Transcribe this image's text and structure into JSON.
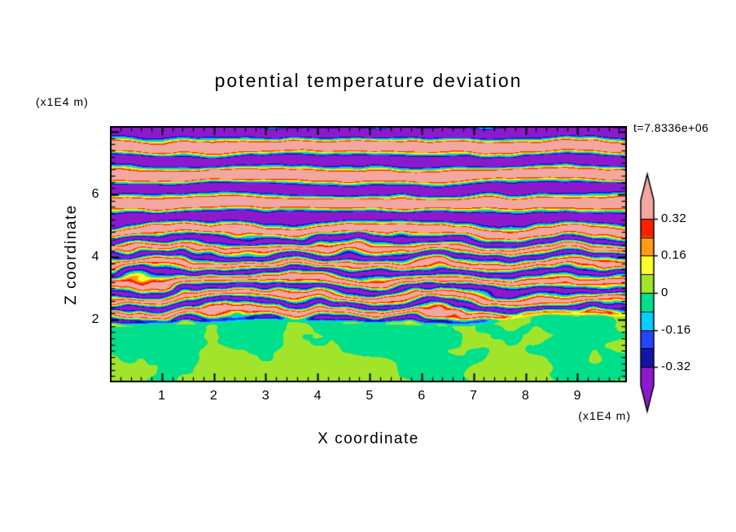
{
  "title": "potential temperature deviation",
  "annotations": {
    "time_label": "t=7.8336e+06",
    "y_axis_unit": "(x1E4 m)",
    "x_axis_unit": "(x1E4 m)"
  },
  "axes": {
    "x_label": "X coordinate",
    "y_label": "Z coordinate"
  },
  "chart_data": {
    "type": "heatmap",
    "title": "potential temperature deviation",
    "xlabel": "X coordinate",
    "ylabel": "Z coordinate",
    "x_unit": "(x1E4 m)",
    "y_unit": "(x1E4 m)",
    "time_annotation": "t=7.8336e+06",
    "xlim": [
      0,
      9.95
    ],
    "ylim": [
      0,
      8.18
    ],
    "x_ticks": [
      1,
      2,
      3,
      4,
      5,
      6,
      7,
      8,
      9
    ],
    "y_ticks": [
      2,
      4,
      6
    ],
    "x_minor_step": 0.2,
    "y_minor_step": 0.2,
    "grid": false,
    "legend_position": "colorbar-right",
    "colorbar": {
      "tick_labels": [
        "0.32",
        "0.16",
        "0",
        "-0.16",
        "-0.32"
      ],
      "tick_values": [
        0.32,
        0.16,
        0,
        -0.16,
        -0.32
      ],
      "levels": [
        -0.32,
        -0.24,
        -0.16,
        -0.08,
        0,
        0.08,
        0.16,
        0.24,
        0.32
      ],
      "segment_colors_low_to_high": [
        "#1414a8",
        "#2446ff",
        "#00cfff",
        "#00e08c",
        "#a2e42a",
        "#ffff2e",
        "#ff9c14",
        "#ff2000"
      ],
      "under_color": "#8d19cd",
      "over_color": "#f2a8a0",
      "extend": "both",
      "range": [
        -0.4,
        0.4
      ]
    },
    "field_regions": [
      {
        "z_range": [
          0,
          2
        ],
        "description": "weak deviations near 0 (-0.08 to 0.08): spring-green background with yellow-green swirling blobs"
      },
      {
        "z_range": [
          2,
          4.5
        ],
        "description": "strong turbulent thin horizontal streaks spanning the full color range (navy/blue/cyan through yellow/orange/red, with saturated pink/purple filaments)"
      },
      {
        "z_range": [
          4.5,
          8.2
        ],
        "description": "saturated alternating horizontal bands mostly beyond +/-0.32 (pink and purple) separated by thin rainbow transition filaments"
      }
    ],
    "procedural": {
      "bottom_top": 1.95,
      "bottom_wave": 0.3,
      "bottom_amps": [
        0.08,
        0.045,
        0.025
      ],
      "bottom_bias": -0.004,
      "mid_amp": 0.4,
      "upper_amp": 0.62,
      "mid_wavelength": 0.52,
      "upper_wavelength": 0.9,
      "mid_end": 4.3,
      "upper_start": 5.4,
      "turb_gains": [
        5.0,
        3.0,
        1.3
      ],
      "upper_turb_floor": 0.25,
      "noise_scales": [
        [
          0.75,
          0.85
        ],
        [
          1.9,
          2.0
        ],
        [
          3.8,
          4.0
        ]
      ],
      "noise_offsets": [
        [
          11.3,
          5.7
        ],
        [
          41.2,
          13.9
        ],
        [
          83.7,
          29.1
        ]
      ]
    }
  }
}
